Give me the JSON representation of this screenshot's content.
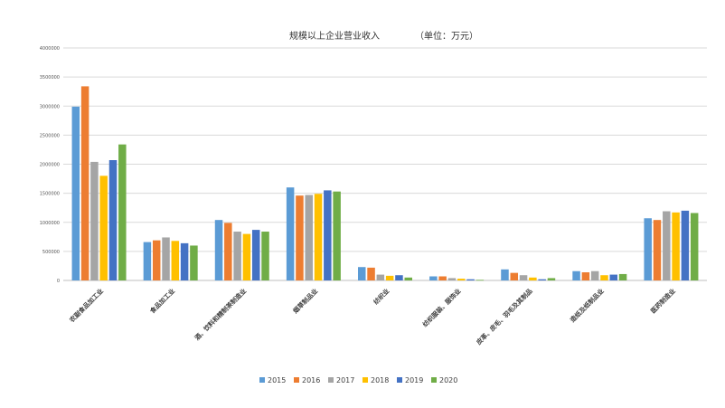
{
  "chart_data": {
    "type": "bar",
    "title": "规模以上企业营业收入",
    "unit_label": "（单位：万元）",
    "ylim": [
      0,
      4000000
    ],
    "yticks": [
      "0",
      "500000",
      "1000000",
      "1500000",
      "2000000",
      "2500000",
      "3000000",
      "3500000",
      "4000000"
    ],
    "categories": [
      "农副食品加工业",
      "食品加工业",
      "酒、饮料和精制茶制造业",
      "烟草制品业",
      "纺织业",
      "纺织服装、服饰业",
      "皮革、皮毛、羽毛及其制品",
      "造纸及纸制品业",
      "医药制造业"
    ],
    "series": [
      {
        "name": "2015",
        "color": "#5B9BD5",
        "values": [
          2990000,
          660000,
          1040000,
          1600000,
          230000,
          70000,
          190000,
          160000,
          1070000
        ]
      },
      {
        "name": "2016",
        "color": "#ED7D31",
        "values": [
          3340000,
          690000,
          990000,
          1460000,
          220000,
          70000,
          130000,
          140000,
          1040000
        ]
      },
      {
        "name": "2017",
        "color": "#A5A5A5",
        "values": [
          2040000,
          740000,
          840000,
          1470000,
          100000,
          40000,
          90000,
          160000,
          1190000
        ]
      },
      {
        "name": "2018",
        "color": "#FFC000",
        "values": [
          1800000,
          680000,
          800000,
          1490000,
          80000,
          30000,
          50000,
          90000,
          1170000
        ]
      },
      {
        "name": "2019",
        "color": "#4472C4",
        "values": [
          2070000,
          640000,
          870000,
          1550000,
          90000,
          20000,
          20000,
          100000,
          1200000
        ]
      },
      {
        "name": "2020",
        "color": "#70AD47",
        "values": [
          2340000,
          600000,
          840000,
          1530000,
          50000,
          10000,
          40000,
          110000,
          1160000
        ]
      }
    ],
    "legend_position": "bottom",
    "grid": true
  }
}
